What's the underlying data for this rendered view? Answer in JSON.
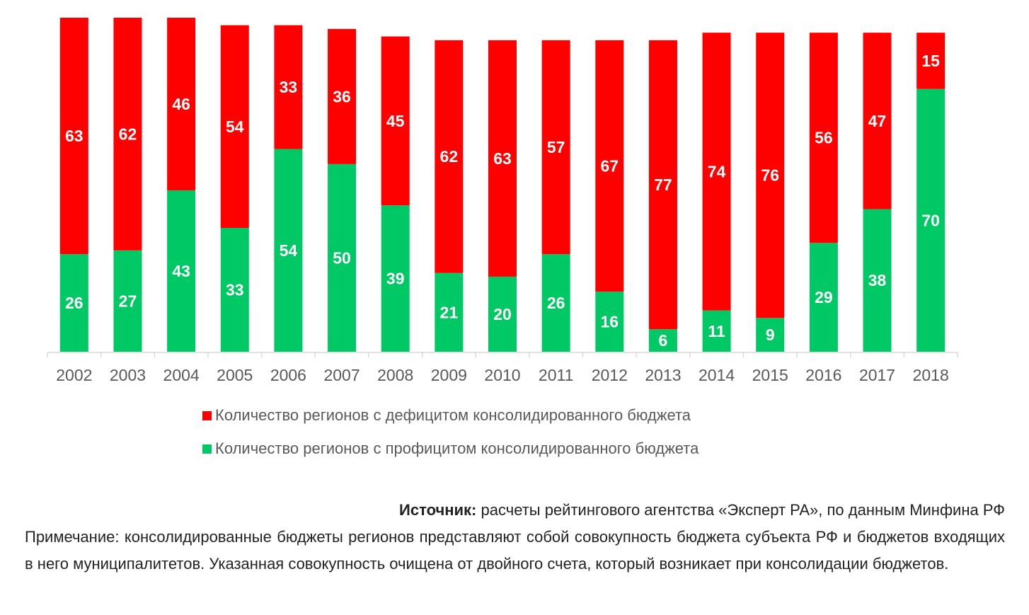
{
  "chart_data": {
    "type": "bar",
    "stacked": true,
    "categories": [
      "2002",
      "2003",
      "2004",
      "2005",
      "2006",
      "2007",
      "2008",
      "2009",
      "2010",
      "2011",
      "2012",
      "2013",
      "2014",
      "2015",
      "2016",
      "2017",
      "2018"
    ],
    "series": [
      {
        "name": "Количество регионов с профицитом консолидированного бюджета",
        "color": "#00C864",
        "values": [
          26,
          27,
          43,
          33,
          54,
          50,
          39,
          21,
          20,
          26,
          16,
          6,
          11,
          9,
          29,
          38,
          70
        ]
      },
      {
        "name": "Количество регионов с дефицитом консолидированного бюджета",
        "color": "#FF0000",
        "values": [
          63,
          62,
          46,
          54,
          33,
          36,
          45,
          62,
          63,
          57,
          67,
          77,
          74,
          76,
          56,
          47,
          15
        ]
      }
    ],
    "title": "",
    "xlabel": "",
    "ylabel": "",
    "ylim": [
      0,
      89
    ],
    "grid": false,
    "legend_placement": "bottom"
  },
  "legend": [
    {
      "label": "Количество регионов с дефицитом консолидированного бюджета",
      "color": "#FF0000"
    },
    {
      "label": "Количество регионов с профицитом консолидированного бюджета",
      "color": "#00C864"
    }
  ],
  "notes": {
    "source_label": "Источник:",
    "source_text": " расчеты рейтингового агентства «Эксперт РА», по данным Минфина РФ",
    "note": "Примечание: консолидированные бюджеты регионов представляют собой совокупность бюджета субъекта РФ и бюджетов входящих в него муниципалитетов. Указанная совокупность очищена от двойного счета, который возникает при консолидации бюджетов."
  }
}
